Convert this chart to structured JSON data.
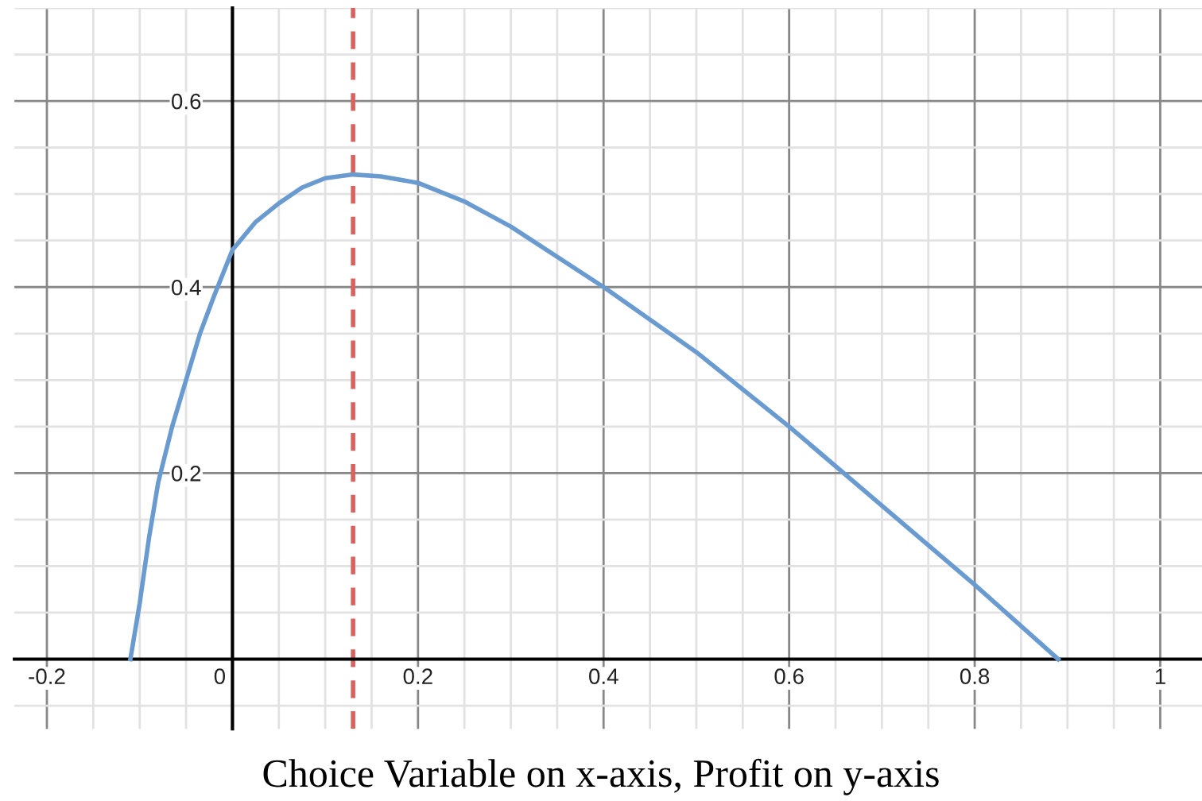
{
  "chart_data": {
    "type": "line",
    "x": [
      -0.11,
      -0.1,
      -0.09,
      -0.08,
      -0.065,
      -0.05,
      -0.035,
      -0.02,
      0,
      0.025,
      0.05,
      0.075,
      0.1,
      0.13,
      0.16,
      0.2,
      0.25,
      0.3,
      0.4,
      0.5,
      0.6,
      0.7,
      0.8,
      0.89
    ],
    "series": [
      {
        "color": "#6a9bd0",
        "values": [
          0,
          0.06,
          0.13,
          0.19,
          0.25,
          0.3,
          0.35,
          0.39,
          0.44,
          0.47,
          0.49,
          0.507,
          0.517,
          0.521,
          0.519,
          0.512,
          0.492,
          0.465,
          0.4,
          0.33,
          0.25,
          0.165,
          0.08,
          0
        ]
      }
    ],
    "xlim": [
      -0.235,
      1.045
    ],
    "ylim": [
      -0.075,
      0.7
    ],
    "xticks": [
      -0.2,
      0,
      0.2,
      0.4,
      0.6,
      0.8,
      1
    ],
    "yticks": [
      0.2,
      0.4,
      0.6
    ],
    "ref_lines": [
      {
        "axis": "x",
        "value": 0.13,
        "color": "#d9625f",
        "line_style": "dashed"
      }
    ],
    "grid": true,
    "marker": "none",
    "line_style": "solid",
    "annotations": [
      "Choice Variable on x-axis, Profit on y-axis"
    ]
  }
}
